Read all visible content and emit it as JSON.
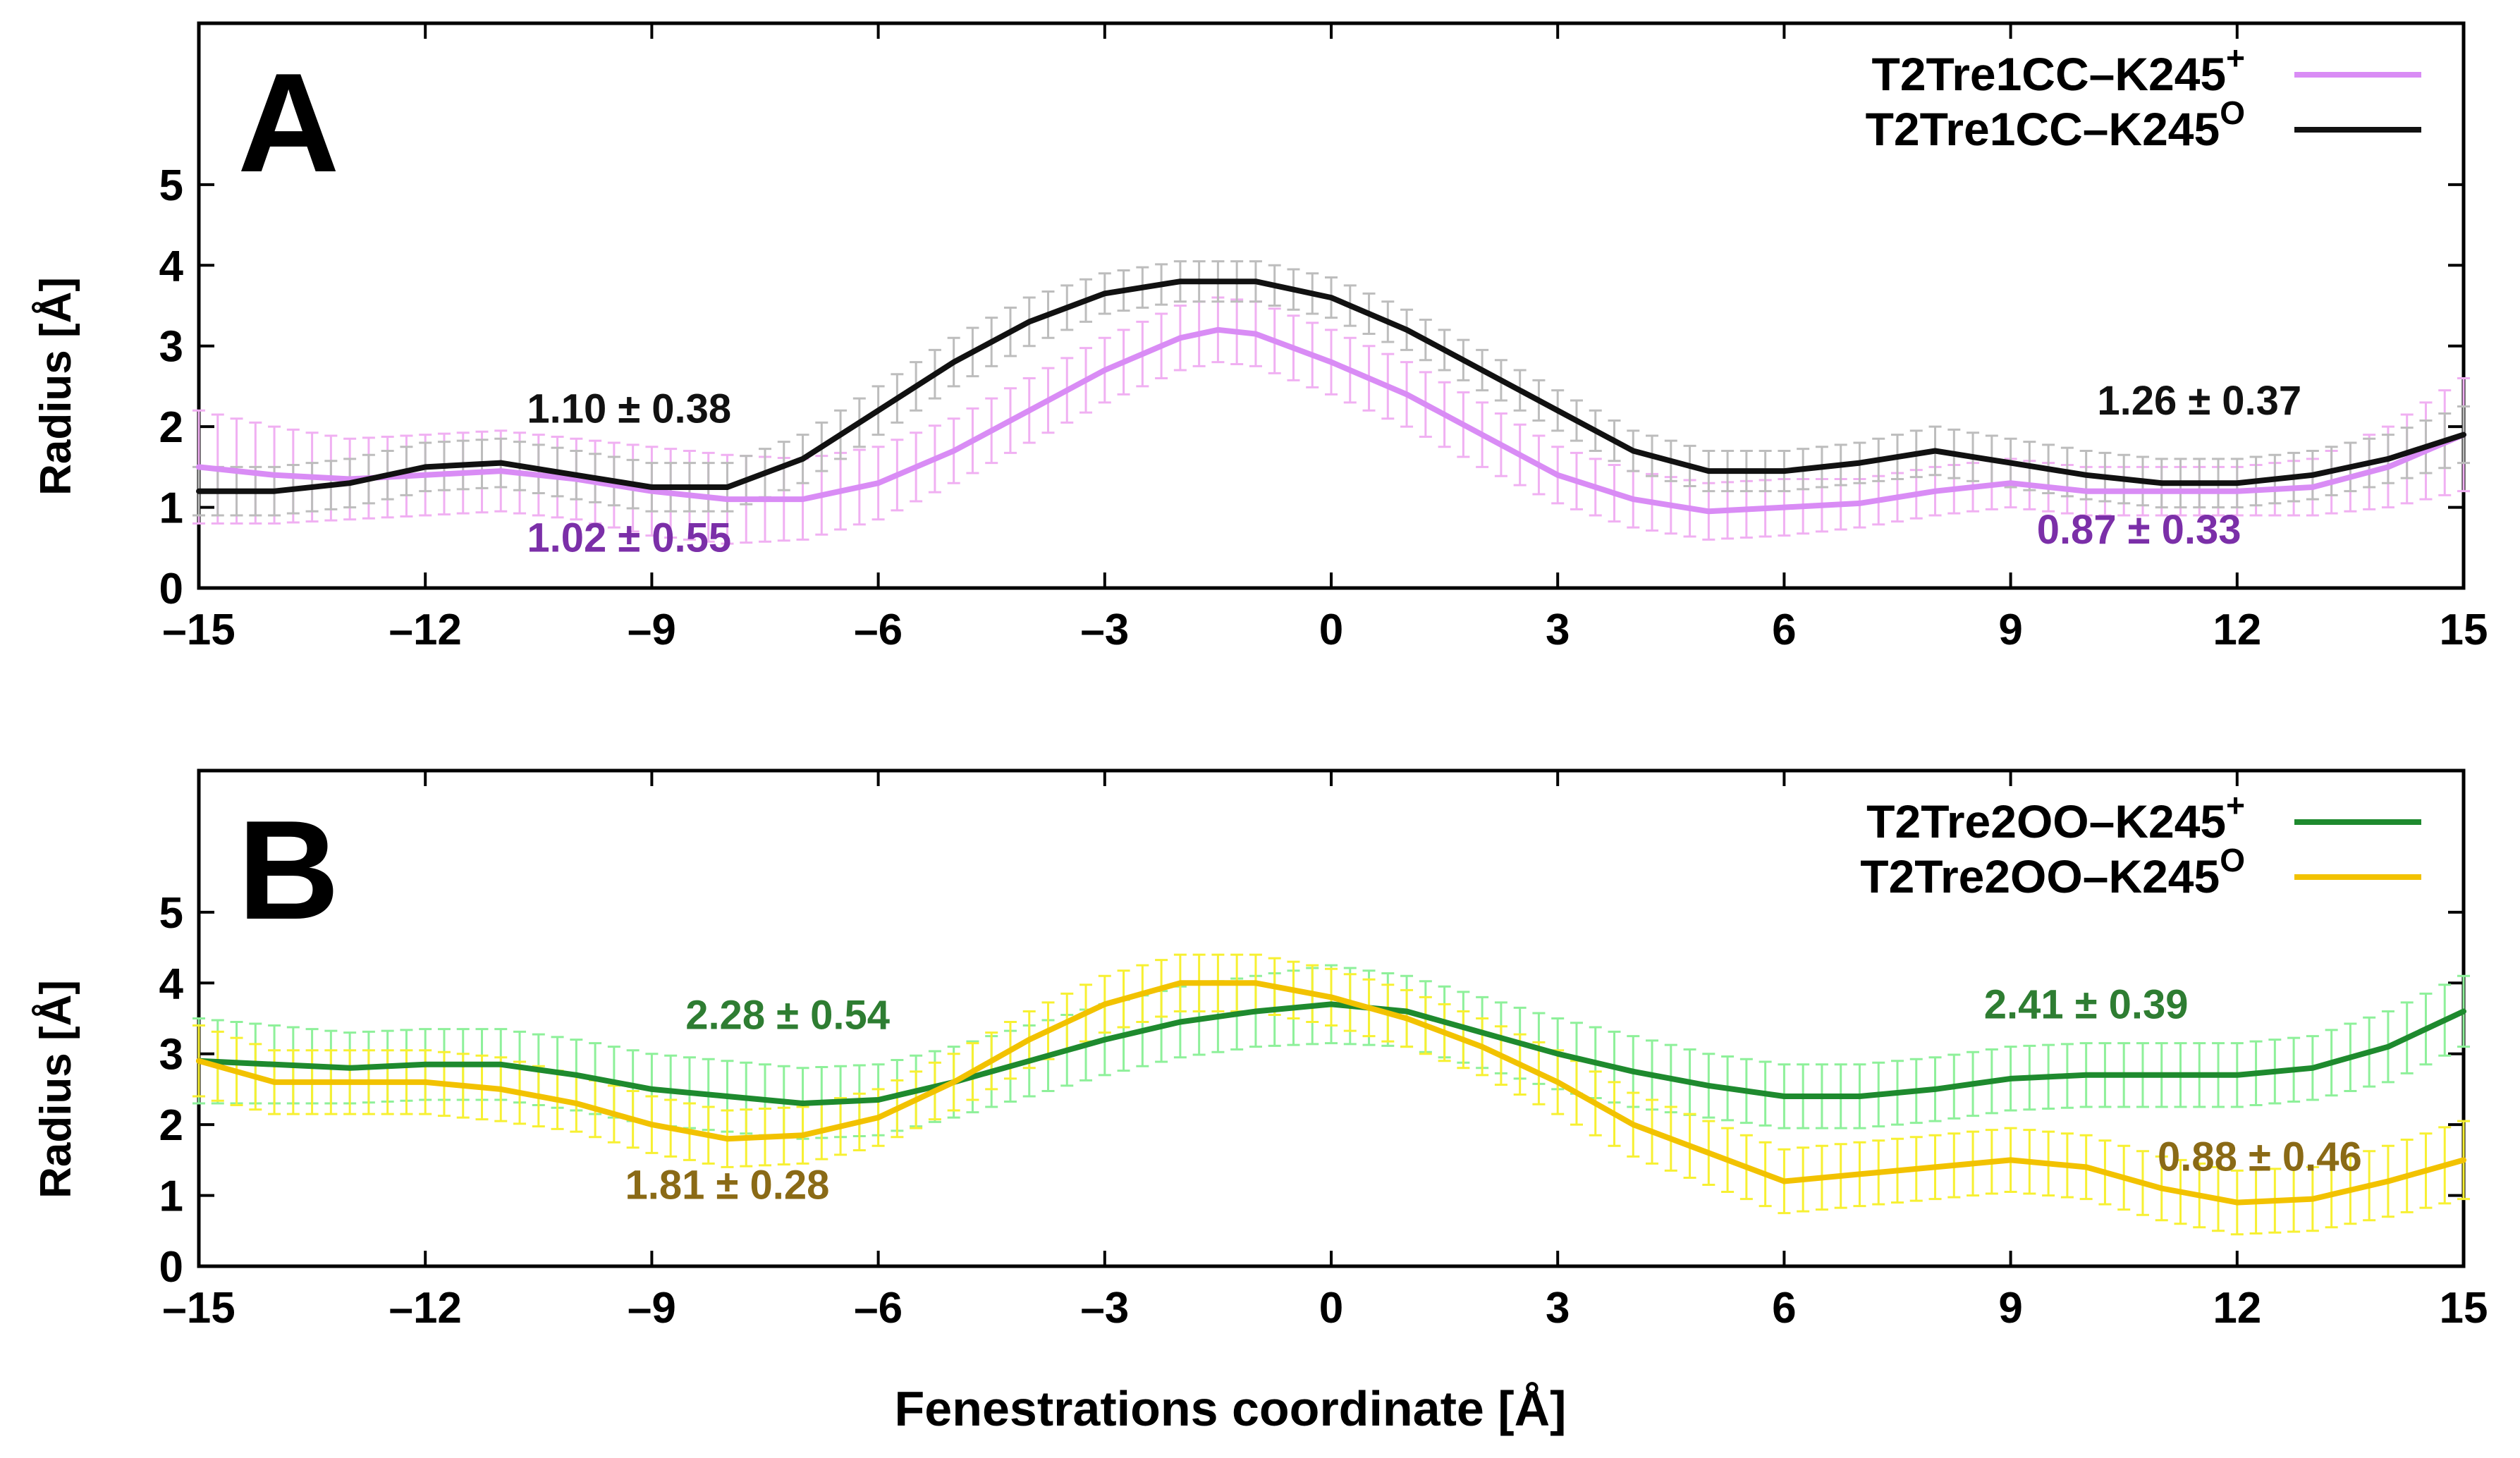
{
  "figure": {
    "xlabel": "Fenestrations coordinate [Å]"
  },
  "chart_data": [
    {
      "type": "line",
      "panel_label": "A",
      "ylabel": "Radius [Å]",
      "xlabel": "",
      "xlim": [
        -15,
        15
      ],
      "ylim": [
        0,
        7
      ],
      "xticks": [
        -15,
        -12,
        -9,
        -6,
        -3,
        0,
        3,
        6,
        9,
        12,
        15
      ],
      "xtick_labels": [
        "–15",
        "–12",
        "–9",
        "–6",
        "–3",
        "0",
        "3",
        "6",
        "9",
        "12",
        "15"
      ],
      "yticks": [
        0,
        1,
        2,
        3,
        4,
        5
      ],
      "legend_position": "top-right",
      "series": [
        {
          "name": "T2Tre1CC–K245",
          "sup": "+",
          "color": "#d98cf5",
          "error_color": "#f0b0f2",
          "x": [
            -15,
            -14,
            -13,
            -12,
            -11,
            -10,
            -9,
            -8,
            -7,
            -6,
            -5,
            -4,
            -3,
            -2,
            -1.5,
            -1,
            0,
            1,
            2,
            3,
            4,
            5,
            6,
            7,
            8,
            9,
            10,
            11,
            12,
            13,
            14,
            15
          ],
          "y": [
            1.5,
            1.4,
            1.35,
            1.4,
            1.45,
            1.35,
            1.2,
            1.1,
            1.1,
            1.3,
            1.7,
            2.2,
            2.7,
            3.1,
            3.2,
            3.15,
            2.8,
            2.4,
            1.9,
            1.4,
            1.1,
            0.95,
            1.0,
            1.05,
            1.2,
            1.3,
            1.2,
            1.2,
            1.2,
            1.25,
            1.5,
            1.9
          ],
          "err": [
            0.7,
            0.6,
            0.5,
            0.5,
            0.5,
            0.5,
            0.55,
            0.55,
            0.5,
            0.45,
            0.4,
            0.4,
            0.4,
            0.4,
            0.4,
            0.4,
            0.4,
            0.4,
            0.4,
            0.35,
            0.35,
            0.35,
            0.35,
            0.3,
            0.3,
            0.3,
            0.3,
            0.3,
            0.3,
            0.35,
            0.5,
            0.7
          ]
        },
        {
          "name": "T2Tre1CC–K245",
          "sup": "O",
          "color": "#111111",
          "error_color": "#bdbdbd",
          "x": [
            -15,
            -14,
            -13,
            -12,
            -11,
            -10,
            -9,
            -8,
            -7,
            -6,
            -5,
            -4,
            -3,
            -2,
            -1.5,
            -1,
            0,
            1,
            2,
            3,
            4,
            5,
            6,
            7,
            8,
            9,
            10,
            11,
            12,
            13,
            14,
            15
          ],
          "y": [
            1.2,
            1.2,
            1.3,
            1.5,
            1.55,
            1.4,
            1.25,
            1.25,
            1.6,
            2.2,
            2.8,
            3.3,
            3.65,
            3.8,
            3.8,
            3.8,
            3.6,
            3.2,
            2.7,
            2.2,
            1.7,
            1.45,
            1.45,
            1.55,
            1.7,
            1.55,
            1.4,
            1.3,
            1.3,
            1.4,
            1.6,
            1.9
          ],
          "err": [
            0.3,
            0.3,
            0.3,
            0.3,
            0.3,
            0.3,
            0.3,
            0.3,
            0.3,
            0.3,
            0.3,
            0.3,
            0.25,
            0.25,
            0.25,
            0.25,
            0.25,
            0.25,
            0.25,
            0.25,
            0.25,
            0.25,
            0.25,
            0.25,
            0.3,
            0.3,
            0.3,
            0.3,
            0.3,
            0.3,
            0.3,
            0.35
          ]
        }
      ],
      "annotations": [
        {
          "text": "1.10 ± 0.38",
          "x": -9.3,
          "y": 2.05,
          "color": "#111111"
        },
        {
          "text": "1.02 ± 0.55",
          "x": -9.3,
          "y": 0.45,
          "color": "#7b2fa8"
        },
        {
          "text": "1.26 ± 0.37",
          "x": 11.5,
          "y": 2.15,
          "color": "#111111"
        },
        {
          "text": "0.87 ± 0.33",
          "x": 10.7,
          "y": 0.55,
          "color": "#7b2fa8"
        }
      ]
    },
    {
      "type": "line",
      "panel_label": "B",
      "ylabel": "Radius [Å]",
      "xlabel": "Fenestrations coordinate [Å]",
      "xlim": [
        -15,
        15
      ],
      "ylim": [
        0,
        7
      ],
      "xticks": [
        -15,
        -12,
        -9,
        -6,
        -3,
        0,
        3,
        6,
        9,
        12,
        15
      ],
      "xtick_labels": [
        "–15",
        "–12",
        "–9",
        "–6",
        "–3",
        "0",
        "3",
        "6",
        "9",
        "12",
        "15"
      ],
      "yticks": [
        0,
        1,
        2,
        3,
        4,
        5
      ],
      "legend_position": "top-right",
      "series": [
        {
          "name": "T2Tre2OO–K245",
          "sup": "+",
          "color": "#1e8a2e",
          "error_color": "#8ef09a",
          "x": [
            -15,
            -14,
            -13,
            -12,
            -11,
            -10,
            -9,
            -8,
            -7,
            -6,
            -5,
            -4,
            -3,
            -2,
            -1,
            0,
            1,
            2,
            3,
            4,
            5,
            6,
            7,
            8,
            9,
            10,
            11,
            12,
            13,
            14,
            15
          ],
          "y": [
            2.9,
            2.85,
            2.8,
            2.85,
            2.85,
            2.7,
            2.5,
            2.4,
            2.3,
            2.35,
            2.6,
            2.9,
            3.2,
            3.45,
            3.6,
            3.7,
            3.6,
            3.3,
            3.0,
            2.75,
            2.55,
            2.4,
            2.4,
            2.5,
            2.65,
            2.7,
            2.7,
            2.7,
            2.8,
            3.1,
            3.6
          ],
          "err": [
            0.6,
            0.55,
            0.5,
            0.5,
            0.5,
            0.5,
            0.5,
            0.5,
            0.5,
            0.5,
            0.5,
            0.5,
            0.5,
            0.5,
            0.5,
            0.55,
            0.5,
            0.5,
            0.5,
            0.5,
            0.45,
            0.45,
            0.45,
            0.45,
            0.45,
            0.45,
            0.45,
            0.45,
            0.45,
            0.5,
            0.5
          ]
        },
        {
          "name": "T2Tre2OO–K245",
          "sup": "O",
          "color": "#f2c200",
          "error_color": "#f7f032",
          "x": [
            -15,
            -14,
            -13,
            -12,
            -11,
            -10,
            -9,
            -8,
            -7,
            -6,
            -5,
            -4,
            -3,
            -2,
            -1,
            0,
            1,
            2,
            3,
            4,
            5,
            6,
            7,
            8,
            9,
            10,
            11,
            12,
            13,
            14,
            15
          ],
          "y": [
            2.9,
            2.6,
            2.6,
            2.6,
            2.5,
            2.3,
            2.0,
            1.8,
            1.85,
            2.1,
            2.6,
            3.2,
            3.7,
            4.0,
            4.0,
            3.8,
            3.5,
            3.1,
            2.6,
            2.0,
            1.6,
            1.2,
            1.3,
            1.4,
            1.5,
            1.4,
            1.1,
            0.9,
            0.95,
            1.2,
            1.5
          ],
          "err": [
            0.5,
            0.45,
            0.45,
            0.45,
            0.45,
            0.4,
            0.4,
            0.4,
            0.4,
            0.4,
            0.4,
            0.4,
            0.4,
            0.4,
            0.4,
            0.4,
            0.4,
            0.4,
            0.45,
            0.45,
            0.45,
            0.45,
            0.45,
            0.45,
            0.45,
            0.45,
            0.45,
            0.45,
            0.45,
            0.5,
            0.55
          ]
        }
      ],
      "annotations": [
        {
          "text": "2.28 ± 0.54",
          "x": -7.2,
          "y": 3.35,
          "color": "#2e7d32"
        },
        {
          "text": "1.81 ± 0.28",
          "x": -8.0,
          "y": 0.95,
          "color": "#8a6a16"
        },
        {
          "text": "2.41 ± 0.39",
          "x": 10.0,
          "y": 3.5,
          "color": "#2e7d32"
        },
        {
          "text": "0.88 ± 0.46",
          "x": 12.3,
          "y": 1.35,
          "color": "#8a6a16"
        }
      ]
    }
  ]
}
